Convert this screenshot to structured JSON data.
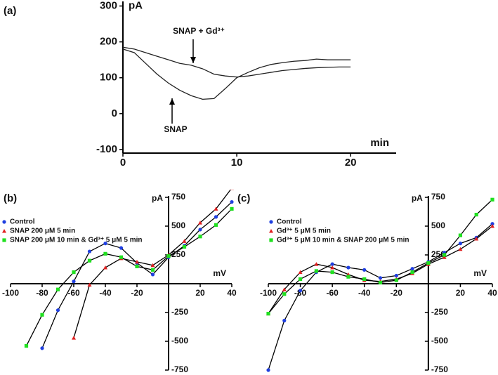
{
  "chart_data": [
    {
      "type": "line",
      "label": "(a)",
      "y_label": "pA",
      "x_label": "min",
      "annotations": [
        "SNAP + Gd³⁺",
        "SNAP"
      ],
      "x": [
        0,
        1,
        2,
        3,
        4,
        5,
        6,
        7,
        8,
        9,
        10,
        11,
        12,
        13,
        14,
        15,
        16,
        17,
        18,
        19,
        20
      ],
      "xlim": [
        0,
        24
      ],
      "ylim": [
        -110,
        305
      ],
      "xticks": [
        0,
        10,
        20
      ],
      "yticks": [
        -100,
        0,
        100,
        200,
        300
      ],
      "series": [
        {
          "name": "SNAP",
          "color": "#222222",
          "values": [
            180,
            170,
            140,
            110,
            85,
            65,
            50,
            40,
            42,
            70,
            100,
            115,
            128,
            137,
            142,
            146,
            148,
            152,
            150,
            150,
            150
          ]
        },
        {
          "name": "SNAP + Gd³⁺",
          "color": "#222222",
          "values": [
            185,
            180,
            170,
            160,
            150,
            140,
            135,
            125,
            110,
            105,
            102,
            105,
            110,
            115,
            120,
            123,
            126,
            128,
            129,
            130,
            130
          ]
        }
      ]
    },
    {
      "type": "line",
      "label": "(b)",
      "y_label": "pA",
      "x_label": "mV",
      "x": [
        -100,
        -90,
        -80,
        -70,
        -60,
        -50,
        -40,
        -30,
        -20,
        -10,
        0,
        10,
        20,
        30,
        40
      ],
      "xlim": [
        -100,
        40
      ],
      "ylim": [
        -750,
        750
      ],
      "xticks": [
        -100,
        -80,
        -60,
        -40,
        -20,
        20,
        40
      ],
      "yticks": [
        -750,
        -500,
        -250,
        250,
        500,
        750
      ],
      "series": [
        {
          "name": "Control",
          "color": "#1f3fe0",
          "marker": "circle",
          "values": [
            null,
            null,
            -560,
            -230,
            20,
            280,
            350,
            310,
            180,
            80,
            230,
            330,
            470,
            580,
            710
          ]
        },
        {
          "name": "SNAP 200 μM  5 min",
          "color": "#e02020",
          "marker": "triangle",
          "values": [
            null,
            null,
            null,
            null,
            -470,
            -10,
            140,
            220,
            190,
            160,
            250,
            370,
            530,
            650,
            830
          ]
        },
        {
          "name": "SNAP 200 μM 10 min & Gd³⁺ 5 μM 5 min",
          "color": "#20e020",
          "marker": "square",
          "values": [
            null,
            -540,
            -270,
            -50,
            100,
            200,
            260,
            230,
            150,
            120,
            240,
            320,
            410,
            510,
            650
          ]
        }
      ]
    },
    {
      "type": "line",
      "label": "(c)",
      "y_label": "pA",
      "x_label": "mV",
      "x": [
        -100,
        -90,
        -80,
        -70,
        -60,
        -50,
        -40,
        -30,
        -20,
        -10,
        0,
        10,
        20,
        30,
        40
      ],
      "xlim": [
        -100,
        40
      ],
      "ylim": [
        -750,
        750
      ],
      "xticks": [
        -100,
        -80,
        -60,
        -40,
        -20,
        20,
        40
      ],
      "yticks": [
        -750,
        -500,
        -250,
        250,
        500,
        750
      ],
      "series": [
        {
          "name": "Control",
          "color": "#1f3fe0",
          "marker": "circle",
          "values": [
            -750,
            -320,
            -60,
            100,
            170,
            140,
            120,
            50,
            70,
            130,
            190,
            270,
            350,
            400,
            520
          ]
        },
        {
          "name": "Gd³⁺ 5 μM  5 min",
          "color": "#e02020",
          "marker": "triangle",
          "values": [
            -260,
            -50,
            100,
            170,
            140,
            80,
            30,
            20,
            40,
            90,
            170,
            230,
            300,
            390,
            500
          ]
        },
        {
          "name": "Gd³⁺ 5 μM 10 min & SNAP 200 μM  5 min",
          "color": "#20e020",
          "marker": "square",
          "values": [
            -260,
            -90,
            40,
            110,
            100,
            60,
            40,
            10,
            30,
            100,
            180,
            250,
            420,
            600,
            730
          ]
        }
      ]
    }
  ]
}
